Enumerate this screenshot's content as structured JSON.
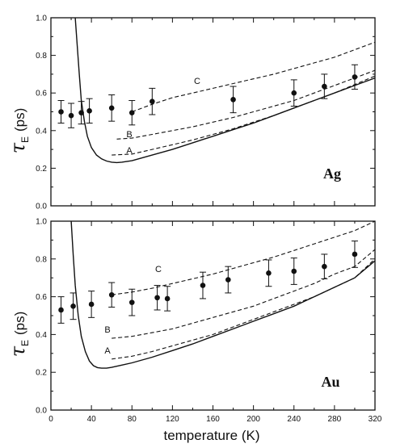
{
  "x_axis_title": "temperature  (K)",
  "chart_data": [
    {
      "type": "line",
      "title": "",
      "panel_label": "Ag",
      "ylabel": {
        "symbol": "τ",
        "subscript": "E",
        "unit": "(ps)"
      },
      "xlim": [
        0,
        320
      ],
      "ylim": [
        0,
        1.0
      ],
      "x_ticks": [
        0,
        40,
        80,
        120,
        160,
        200,
        240,
        280,
        320
      ],
      "y_ticks": [
        "0.0",
        "0.2",
        "0.4",
        "0.6",
        "0.8",
        "1.0"
      ],
      "x_tick_labels_shown": false,
      "grid": false,
      "series": [
        {
          "style": "solid",
          "x": [
            24,
            26,
            28,
            30,
            33,
            36,
            40,
            45,
            50,
            55,
            60,
            65,
            70,
            80,
            90,
            100,
            120,
            140,
            160,
            180,
            200,
            220,
            240,
            260,
            280,
            300,
            320
          ],
          "y": [
            1.0,
            0.85,
            0.7,
            0.56,
            0.45,
            0.37,
            0.31,
            0.27,
            0.25,
            0.238,
            0.232,
            0.23,
            0.232,
            0.24,
            0.255,
            0.27,
            0.3,
            0.335,
            0.37,
            0.405,
            0.44,
            0.48,
            0.52,
            0.56,
            0.6,
            0.64,
            0.68
          ]
        },
        {
          "style": "dashed",
          "name": "A",
          "x": [
            60,
            80,
            100,
            120,
            140,
            160,
            180,
            200,
            220,
            240,
            260,
            280,
            300,
            320
          ],
          "y": [
            0.27,
            0.275,
            0.3,
            0.325,
            0.35,
            0.38,
            0.41,
            0.445,
            0.48,
            0.52,
            0.56,
            0.6,
            0.645,
            0.69
          ]
        },
        {
          "style": "dashed",
          "name": "B",
          "x": [
            65,
            80,
            100,
            120,
            140,
            160,
            180,
            200,
            220,
            240,
            260,
            280,
            300,
            320
          ],
          "y": [
            0.355,
            0.36,
            0.38,
            0.4,
            0.42,
            0.445,
            0.47,
            0.5,
            0.53,
            0.56,
            0.6,
            0.64,
            0.68,
            0.72
          ]
        },
        {
          "style": "dashed",
          "name": "C",
          "x": [
            80,
            100,
            120,
            140,
            160,
            180,
            200,
            220,
            240,
            260,
            280,
            300,
            320
          ],
          "y": [
            0.5,
            0.54,
            0.575,
            0.6,
            0.625,
            0.65,
            0.675,
            0.7,
            0.73,
            0.76,
            0.79,
            0.83,
            0.87
          ]
        }
      ],
      "points": [
        {
          "x": 10,
          "y": 0.5,
          "err": 0.06
        },
        {
          "x": 20,
          "y": 0.48,
          "err": 0.065
        },
        {
          "x": 30,
          "y": 0.495,
          "err": 0.06
        },
        {
          "x": 38,
          "y": 0.505,
          "err": 0.065
        },
        {
          "x": 60,
          "y": 0.52,
          "err": 0.07
        },
        {
          "x": 80,
          "y": 0.495,
          "err": 0.065
        },
        {
          "x": 100,
          "y": 0.555,
          "err": 0.07
        },
        {
          "x": 180,
          "y": 0.565,
          "err": 0.07
        },
        {
          "x": 240,
          "y": 0.6,
          "err": 0.07
        },
        {
          "x": 270,
          "y": 0.635,
          "err": 0.065
        },
        {
          "x": 300,
          "y": 0.685,
          "err": 0.065
        }
      ]
    },
    {
      "type": "line",
      "title": "",
      "panel_label": "Au",
      "ylabel": {
        "symbol": "τ",
        "subscript": "E",
        "unit": "(ps)"
      },
      "xlabel": "temperature  (K)",
      "xlim": [
        0,
        320
      ],
      "ylim": [
        0,
        1.0
      ],
      "x_ticks": [
        0,
        40,
        80,
        120,
        160,
        200,
        240,
        280,
        320
      ],
      "x_tick_labels": [
        "0",
        "40",
        "80",
        "120",
        "160",
        "200",
        "240",
        "280",
        "320"
      ],
      "y_ticks": [
        "0.0",
        "0.2",
        "0.4",
        "0.6",
        "0.8",
        "1.0"
      ],
      "grid": false,
      "series": [
        {
          "style": "solid",
          "x": [
            20,
            22,
            24,
            27,
            30,
            34,
            38,
            42,
            46,
            50,
            55,
            60,
            70,
            80,
            100,
            120,
            140,
            160,
            180,
            200,
            220,
            240,
            260,
            280,
            300,
            320
          ],
          "y": [
            1.0,
            0.82,
            0.66,
            0.5,
            0.39,
            0.31,
            0.26,
            0.235,
            0.225,
            0.222,
            0.222,
            0.226,
            0.238,
            0.25,
            0.28,
            0.315,
            0.35,
            0.39,
            0.43,
            0.47,
            0.51,
            0.55,
            0.6,
            0.65,
            0.7,
            0.79
          ]
        },
        {
          "style": "dashed",
          "name": "A",
          "x": [
            60,
            80,
            100,
            120,
            140,
            160,
            180,
            200,
            220,
            240,
            260,
            280,
            300,
            320
          ],
          "y": [
            0.27,
            0.285,
            0.31,
            0.34,
            0.37,
            0.4,
            0.44,
            0.48,
            0.52,
            0.56,
            0.6,
            0.65,
            0.7,
            0.8
          ]
        },
        {
          "style": "dashed",
          "name": "B",
          "x": [
            60,
            80,
            100,
            120,
            140,
            160,
            180,
            200,
            220,
            240,
            260,
            280,
            300,
            320
          ],
          "y": [
            0.38,
            0.39,
            0.41,
            0.43,
            0.46,
            0.49,
            0.52,
            0.55,
            0.59,
            0.63,
            0.67,
            0.72,
            0.76,
            0.85
          ]
        },
        {
          "style": "dashed",
          "name": "C",
          "x": [
            60,
            80,
            100,
            120,
            140,
            160,
            180,
            200,
            220,
            240,
            260,
            280,
            300,
            320
          ],
          "y": [
            0.61,
            0.625,
            0.645,
            0.67,
            0.695,
            0.72,
            0.75,
            0.78,
            0.81,
            0.845,
            0.88,
            0.915,
            0.95,
            1.0
          ]
        }
      ],
      "points": [
        {
          "x": 10,
          "y": 0.53,
          "err": 0.07
        },
        {
          "x": 22,
          "y": 0.55,
          "err": 0.07
        },
        {
          "x": 40,
          "y": 0.56,
          "err": 0.07
        },
        {
          "x": 60,
          "y": 0.61,
          "err": 0.065
        },
        {
          "x": 80,
          "y": 0.57,
          "err": 0.07
        },
        {
          "x": 105,
          "y": 0.595,
          "err": 0.065
        },
        {
          "x": 115,
          "y": 0.59,
          "err": 0.065
        },
        {
          "x": 150,
          "y": 0.66,
          "err": 0.07
        },
        {
          "x": 175,
          "y": 0.69,
          "err": 0.07
        },
        {
          "x": 215,
          "y": 0.725,
          "err": 0.07
        },
        {
          "x": 240,
          "y": 0.735,
          "err": 0.07
        },
        {
          "x": 270,
          "y": 0.76,
          "err": 0.065
        },
        {
          "x": 300,
          "y": 0.825,
          "err": 0.07
        }
      ]
    }
  ]
}
